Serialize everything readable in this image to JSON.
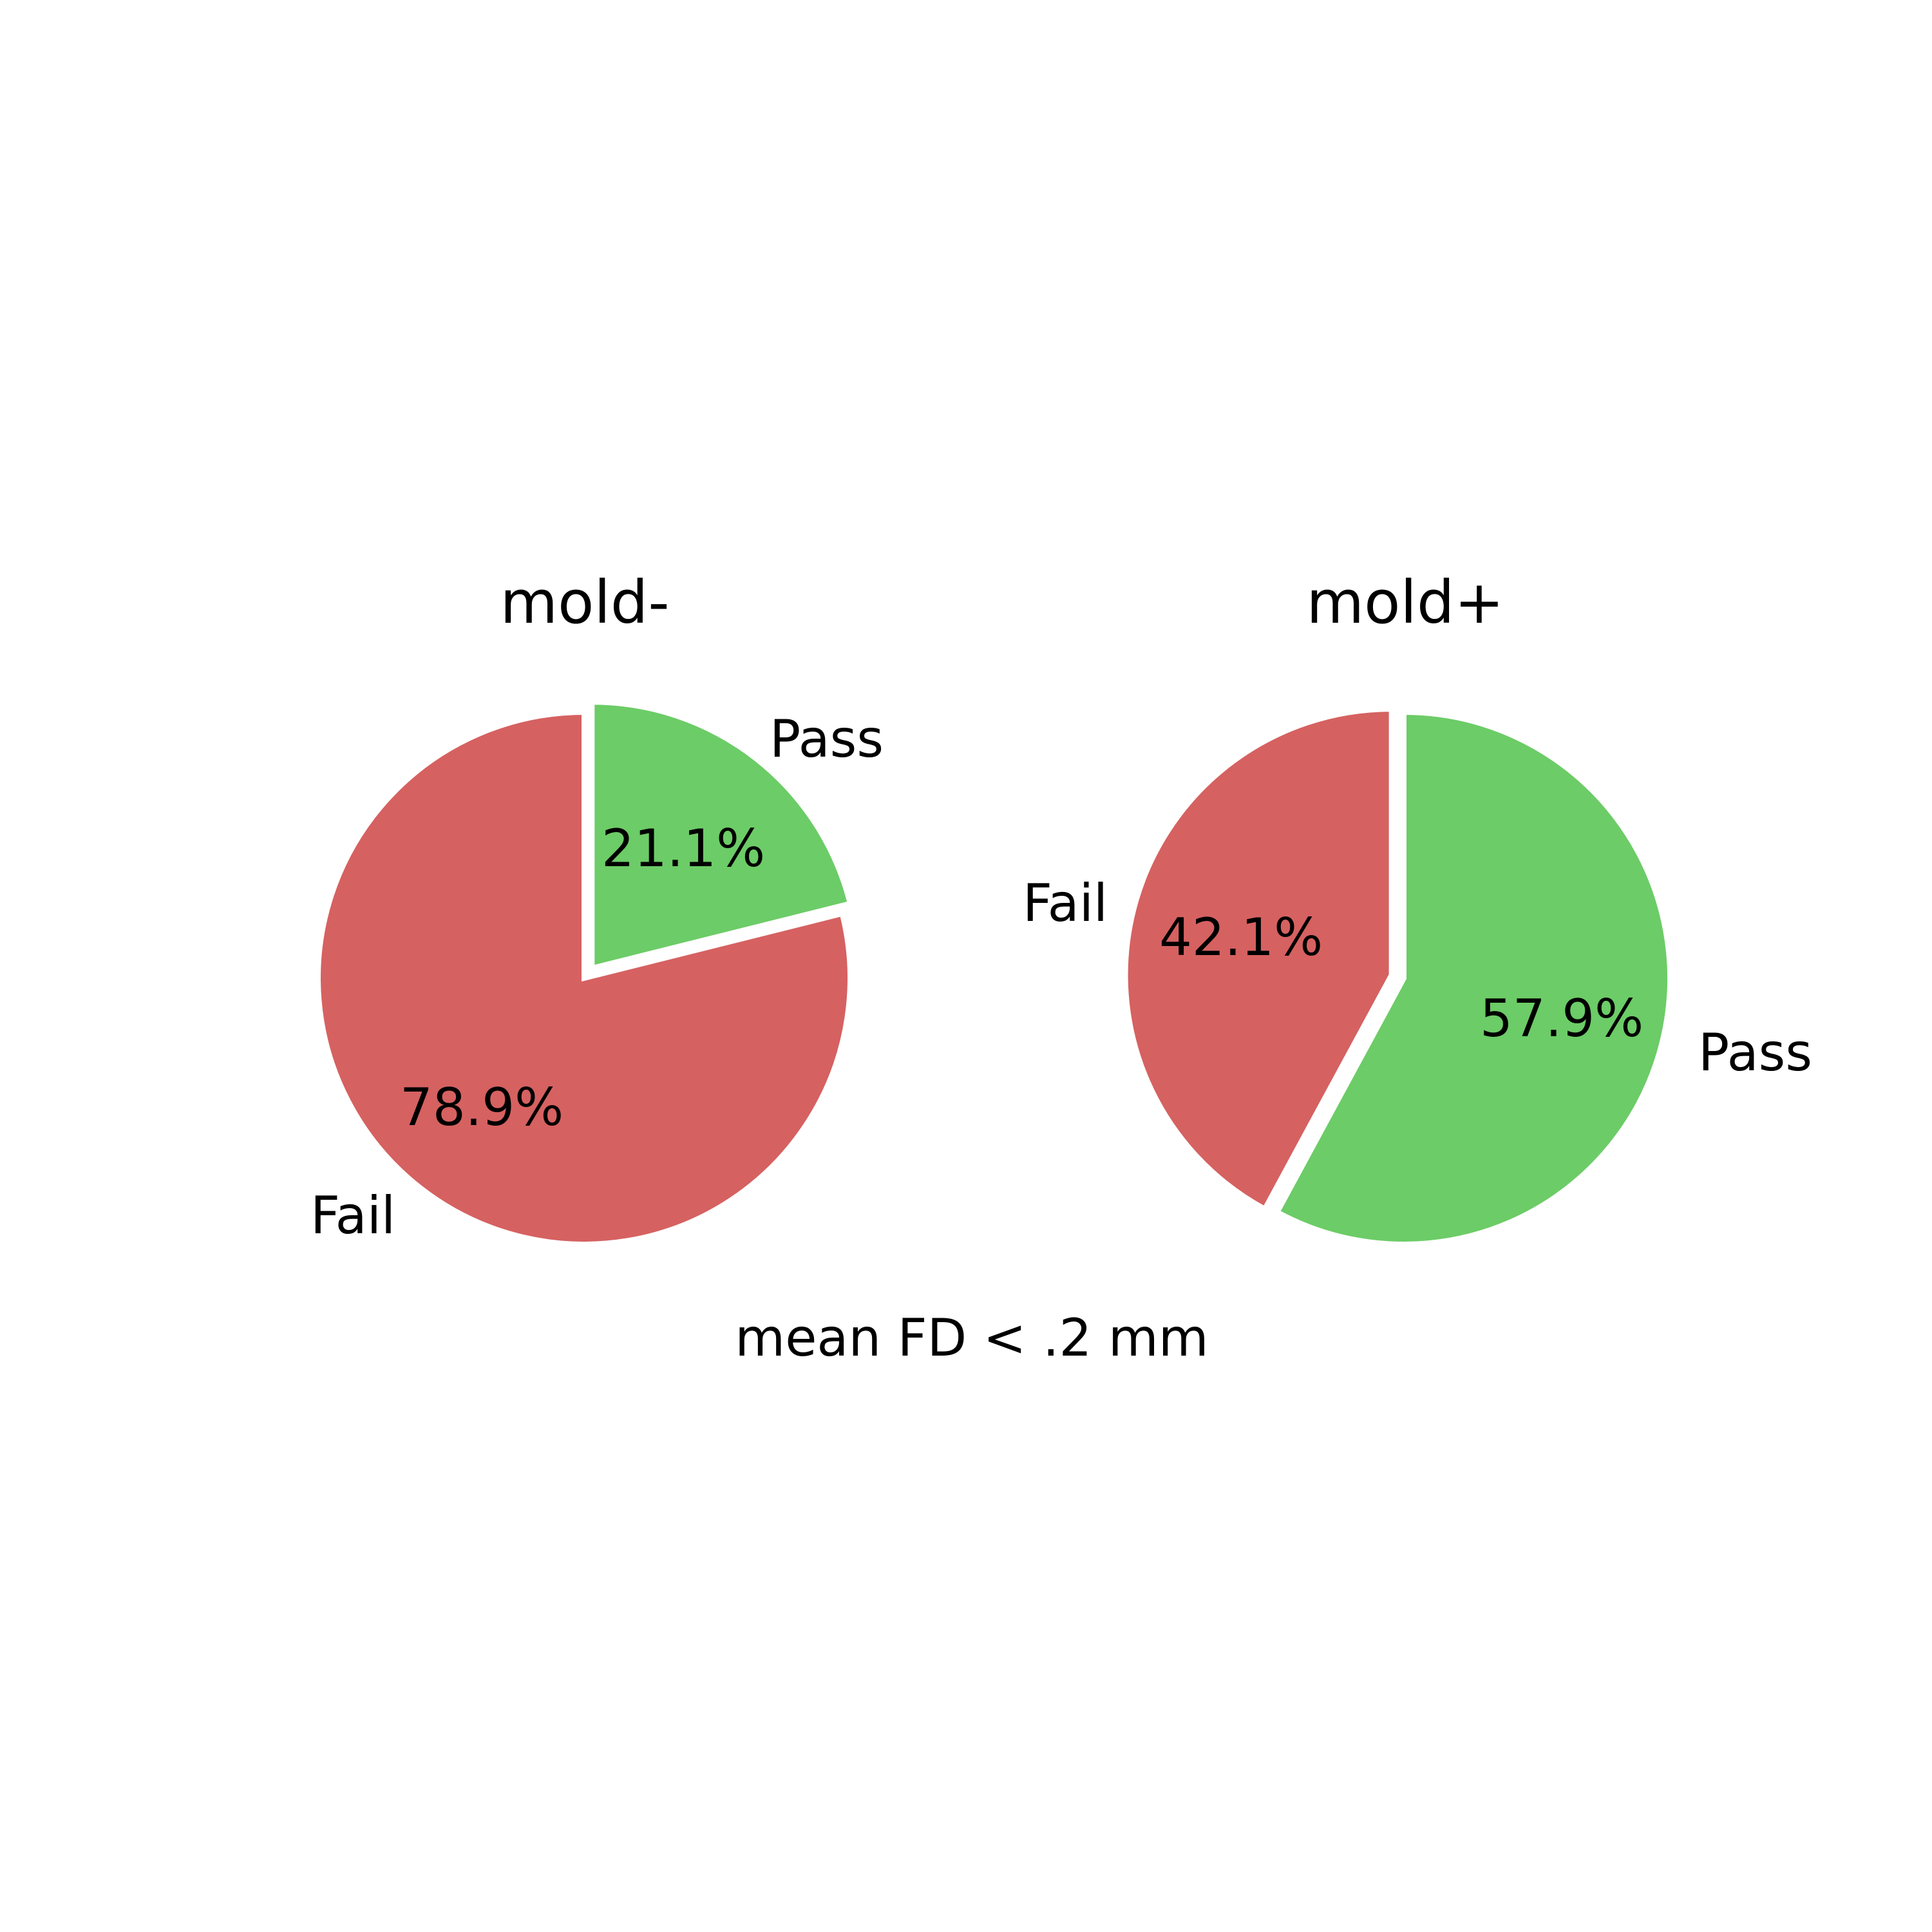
{
  "chart_data": [
    {
      "type": "pie",
      "title": "mold-",
      "slices": [
        {
          "label": "Pass",
          "value": 21.1,
          "pct_label": "21.1%",
          "color": "#6ccc67",
          "exploded": true
        },
        {
          "label": "Fail",
          "value": 78.9,
          "pct_label": "78.9%",
          "color": "#d66161",
          "exploded": false
        }
      ],
      "start_angle_deg": 90,
      "direction": "clockwise"
    },
    {
      "type": "pie",
      "title": "mold+",
      "slices": [
        {
          "label": "Pass",
          "value": 57.9,
          "pct_label": "57.9%",
          "color": "#6ccc67",
          "exploded": false
        },
        {
          "label": "Fail",
          "value": 42.1,
          "pct_label": "42.1%",
          "color": "#d66161",
          "exploded": true
        }
      ],
      "start_angle_deg": 90,
      "direction": "clockwise"
    }
  ],
  "caption": "mean FD < .2 mm"
}
